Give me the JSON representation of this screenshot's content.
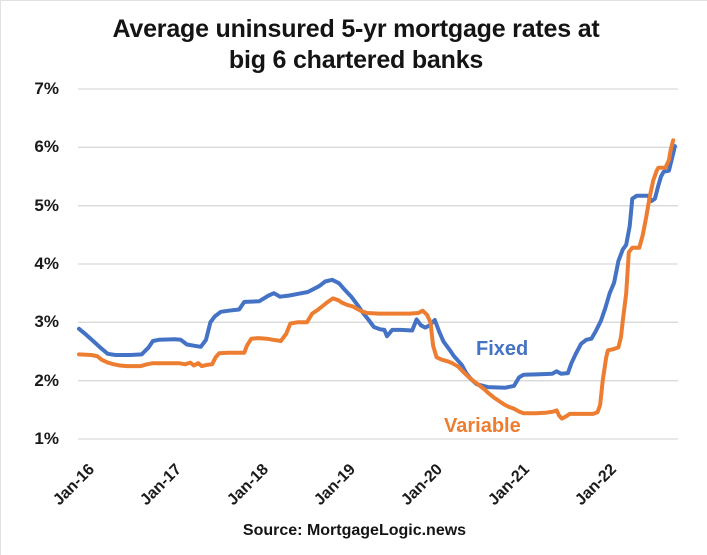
{
  "header": {
    "title_line1": "Average uninsured 5-yr mortgage rates at",
    "title_line2": "big 6 chartered banks"
  },
  "source": "Source: MortgageLogic.news",
  "series_labels": {
    "fixed": "Fixed",
    "variable": "Variable"
  },
  "colors": {
    "fixed": "#4472C4",
    "variable": "#ED7D31",
    "gridline": "#D9D9D9",
    "text": "#1A1A1A"
  },
  "chart_data": {
    "type": "line",
    "title": "Average uninsured 5-yr mortgage rates at big 6 chartered banks",
    "xlabel": "",
    "ylabel": "",
    "x_axis": {
      "tick_labels": [
        "Jan-16",
        "Jan-17",
        "Jan-18",
        "Jan-19",
        "Jan-20",
        "Jan-21",
        "Jan-22"
      ],
      "unit": "years since Jan-2016",
      "range": [
        0,
        6.9
      ]
    },
    "y_axis": {
      "tick_labels": [
        "7%",
        "6%",
        "5%",
        "4%",
        "3%",
        "2%",
        "1%"
      ],
      "min": 1,
      "max": 7,
      "unit": "percent"
    },
    "grid": "horizontal-only",
    "legend_position": "inline-labels-on-chart",
    "series": [
      {
        "name": "Fixed",
        "color": "#4472C4",
        "points": [
          [
            0.0,
            2.89
          ],
          [
            0.08,
            2.79
          ],
          [
            0.17,
            2.67
          ],
          [
            0.25,
            2.56
          ],
          [
            0.33,
            2.46
          ],
          [
            0.42,
            2.44
          ],
          [
            0.59,
            2.44
          ],
          [
            0.72,
            2.45
          ],
          [
            0.8,
            2.57
          ],
          [
            0.85,
            2.68
          ],
          [
            0.92,
            2.7
          ],
          [
            1.1,
            2.71
          ],
          [
            1.17,
            2.7
          ],
          [
            1.24,
            2.62
          ],
          [
            1.32,
            2.6
          ],
          [
            1.4,
            2.58
          ],
          [
            1.46,
            2.7
          ],
          [
            1.51,
            3.0
          ],
          [
            1.56,
            3.1
          ],
          [
            1.63,
            3.18
          ],
          [
            1.72,
            3.2
          ],
          [
            1.84,
            3.22
          ],
          [
            1.9,
            3.35
          ],
          [
            2.07,
            3.36
          ],
          [
            2.18,
            3.46
          ],
          [
            2.24,
            3.5
          ],
          [
            2.31,
            3.44
          ],
          [
            2.42,
            3.46
          ],
          [
            2.52,
            3.49
          ],
          [
            2.63,
            3.52
          ],
          [
            2.76,
            3.62
          ],
          [
            2.83,
            3.7
          ],
          [
            2.91,
            3.73
          ],
          [
            2.99,
            3.67
          ],
          [
            3.06,
            3.55
          ],
          [
            3.13,
            3.44
          ],
          [
            3.2,
            3.3
          ],
          [
            3.26,
            3.17
          ],
          [
            3.33,
            3.04
          ],
          [
            3.39,
            2.92
          ],
          [
            3.46,
            2.88
          ],
          [
            3.51,
            2.87
          ],
          [
            3.54,
            2.76
          ],
          [
            3.6,
            2.87
          ],
          [
            3.7,
            2.87
          ],
          [
            3.83,
            2.86
          ],
          [
            3.88,
            3.05
          ],
          [
            3.93,
            2.95
          ],
          [
            3.98,
            2.91
          ],
          [
            4.03,
            2.95
          ],
          [
            4.09,
            3.04
          ],
          [
            4.14,
            2.84
          ],
          [
            4.19,
            2.67
          ],
          [
            4.26,
            2.53
          ],
          [
            4.31,
            2.42
          ],
          [
            4.4,
            2.27
          ],
          [
            4.45,
            2.13
          ],
          [
            4.51,
            2.02
          ],
          [
            4.57,
            1.94
          ],
          [
            4.7,
            1.89
          ],
          [
            4.9,
            1.88
          ],
          [
            5.0,
            1.91
          ],
          [
            5.06,
            2.06
          ],
          [
            5.11,
            2.1
          ],
          [
            5.3,
            2.11
          ],
          [
            5.44,
            2.12
          ],
          [
            5.49,
            2.16
          ],
          [
            5.54,
            2.12
          ],
          [
            5.62,
            2.13
          ],
          [
            5.66,
            2.3
          ],
          [
            5.71,
            2.46
          ],
          [
            5.77,
            2.63
          ],
          [
            5.83,
            2.7
          ],
          [
            5.89,
            2.72
          ],
          [
            5.94,
            2.85
          ],
          [
            6.0,
            3.03
          ],
          [
            6.05,
            3.25
          ],
          [
            6.1,
            3.5
          ],
          [
            6.15,
            3.68
          ],
          [
            6.2,
            4.05
          ],
          [
            6.25,
            4.25
          ],
          [
            6.29,
            4.33
          ],
          [
            6.33,
            4.65
          ],
          [
            6.36,
            5.12
          ],
          [
            6.41,
            5.17
          ],
          [
            6.54,
            5.17
          ],
          [
            6.58,
            5.08
          ],
          [
            6.62,
            5.12
          ],
          [
            6.66,
            5.35
          ],
          [
            6.69,
            5.5
          ],
          [
            6.72,
            5.58
          ],
          [
            6.78,
            5.6
          ],
          [
            6.82,
            5.83
          ],
          [
            6.85,
            6.02
          ]
        ]
      },
      {
        "name": "Variable",
        "color": "#ED7D31",
        "points": [
          [
            0.0,
            2.45
          ],
          [
            0.14,
            2.44
          ],
          [
            0.21,
            2.42
          ],
          [
            0.26,
            2.36
          ],
          [
            0.33,
            2.31
          ],
          [
            0.4,
            2.28
          ],
          [
            0.47,
            2.26
          ],
          [
            0.55,
            2.25
          ],
          [
            0.71,
            2.25
          ],
          [
            0.78,
            2.28
          ],
          [
            0.85,
            2.3
          ],
          [
            1.0,
            2.3
          ],
          [
            1.15,
            2.3
          ],
          [
            1.22,
            2.28
          ],
          [
            1.28,
            2.31
          ],
          [
            1.32,
            2.26
          ],
          [
            1.37,
            2.3
          ],
          [
            1.41,
            2.25
          ],
          [
            1.47,
            2.27
          ],
          [
            1.53,
            2.28
          ],
          [
            1.57,
            2.4
          ],
          [
            1.61,
            2.47
          ],
          [
            1.72,
            2.48
          ],
          [
            1.9,
            2.48
          ],
          [
            1.93,
            2.6
          ],
          [
            1.98,
            2.72
          ],
          [
            2.06,
            2.73
          ],
          [
            2.16,
            2.72
          ],
          [
            2.23,
            2.7
          ],
          [
            2.32,
            2.68
          ],
          [
            2.38,
            2.8
          ],
          [
            2.43,
            2.98
          ],
          [
            2.51,
            3.0
          ],
          [
            2.62,
            3.0
          ],
          [
            2.68,
            3.15
          ],
          [
            2.75,
            3.22
          ],
          [
            2.8,
            3.28
          ],
          [
            2.86,
            3.35
          ],
          [
            2.92,
            3.41
          ],
          [
            2.98,
            3.38
          ],
          [
            3.02,
            3.34
          ],
          [
            3.08,
            3.3
          ],
          [
            3.15,
            3.27
          ],
          [
            3.21,
            3.22
          ],
          [
            3.25,
            3.19
          ],
          [
            3.31,
            3.16
          ],
          [
            3.45,
            3.15
          ],
          [
            3.65,
            3.15
          ],
          [
            3.8,
            3.15
          ],
          [
            3.9,
            3.16
          ],
          [
            3.95,
            3.2
          ],
          [
            4.0,
            3.13
          ],
          [
            4.04,
            3.0
          ],
          [
            4.07,
            2.6
          ],
          [
            4.11,
            2.4
          ],
          [
            4.17,
            2.36
          ],
          [
            4.24,
            2.33
          ],
          [
            4.29,
            2.3
          ],
          [
            4.36,
            2.24
          ],
          [
            4.41,
            2.16
          ],
          [
            4.48,
            2.06
          ],
          [
            4.54,
            1.99
          ],
          [
            4.6,
            1.92
          ],
          [
            4.66,
            1.85
          ],
          [
            4.72,
            1.77
          ],
          [
            4.77,
            1.71
          ],
          [
            4.83,
            1.65
          ],
          [
            4.89,
            1.59
          ],
          [
            4.94,
            1.55
          ],
          [
            5.0,
            1.52
          ],
          [
            5.06,
            1.47
          ],
          [
            5.11,
            1.44
          ],
          [
            5.25,
            1.44
          ],
          [
            5.36,
            1.45
          ],
          [
            5.45,
            1.47
          ],
          [
            5.49,
            1.49
          ],
          [
            5.52,
            1.4
          ],
          [
            5.55,
            1.35
          ],
          [
            5.59,
            1.38
          ],
          [
            5.64,
            1.43
          ],
          [
            5.8,
            1.43
          ],
          [
            5.91,
            1.43
          ],
          [
            5.96,
            1.46
          ],
          [
            5.99,
            1.58
          ],
          [
            6.02,
            2.0
          ],
          [
            6.06,
            2.4
          ],
          [
            6.08,
            2.52
          ],
          [
            6.14,
            2.54
          ],
          [
            6.2,
            2.57
          ],
          [
            6.23,
            2.75
          ],
          [
            6.25,
            3.03
          ],
          [
            6.29,
            3.5
          ],
          [
            6.32,
            4.2
          ],
          [
            6.36,
            4.28
          ],
          [
            6.44,
            4.28
          ],
          [
            6.48,
            4.5
          ],
          [
            6.52,
            4.8
          ],
          [
            6.56,
            5.15
          ],
          [
            6.6,
            5.43
          ],
          [
            6.64,
            5.6
          ],
          [
            6.66,
            5.65
          ],
          [
            6.74,
            5.65
          ],
          [
            6.78,
            5.78
          ],
          [
            6.8,
            5.95
          ],
          [
            6.83,
            6.12
          ]
        ]
      }
    ]
  }
}
